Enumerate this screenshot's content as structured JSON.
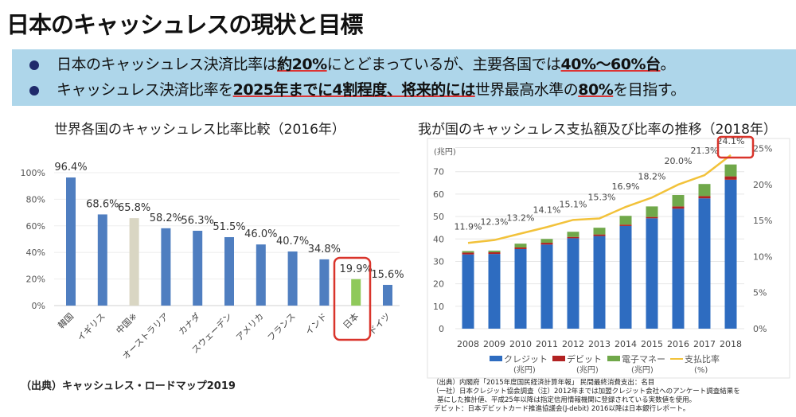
{
  "header": {
    "title": "日本のキャッシュレスの現状と目標"
  },
  "bullets": [
    {
      "parts": [
        {
          "t": "日本のキャッシュレス決済比率は",
          "b": false
        },
        {
          "t": "約20%",
          "b": true
        },
        {
          "t": "にとどまっているが、主要各国では",
          "b": false
        },
        {
          "t": "40%～60%台",
          "b": true
        },
        {
          "t": "。",
          "b": false
        }
      ]
    },
    {
      "parts": [
        {
          "t": "キャッシュレス決済比率を",
          "b": false
        },
        {
          "t": "2025年までに4割程度、将来的には",
          "b": true
        },
        {
          "t": "世界最高水準の",
          "b": false
        },
        {
          "t": "80%",
          "b": true
        },
        {
          "t": "を目指す。",
          "b": false
        }
      ]
    }
  ],
  "colors": {
    "band": "#aed6ea",
    "bar": "#4f7ec0",
    "bar_china": "#d9d6c3",
    "bar_japan": "#8fc95a",
    "highlight": "#d9342b",
    "credit": "#2e6cc0",
    "debit": "#b22222",
    "emoney": "#70a84a",
    "ratio": "#f2c23a"
  },
  "chart_data": [
    {
      "type": "bar",
      "title": "世界各国のキャッシュレス比率比較（2016年）",
      "categories": [
        "韓国",
        "イギリス",
        "中国※",
        "オーストラリア",
        "カナダ",
        "スウェーデン",
        "アメリカ",
        "フランス",
        "インド",
        "日本",
        "ドイツ"
      ],
      "values": [
        96.4,
        68.6,
        65.8,
        58.2,
        56.3,
        51.5,
        46.0,
        40.7,
        34.8,
        19.9,
        15.6
      ],
      "data_labels": [
        "96.4%",
        "68.6%",
        "65.8%",
        "58.2%",
        "56.3%",
        "51.5%",
        "46.0%",
        "40.7%",
        "34.8%",
        "19.9%",
        "15.6%"
      ],
      "ylim": [
        0,
        100
      ],
      "yticks": [
        "0%",
        "20%",
        "40%",
        "60%",
        "80%",
        "100%"
      ],
      "grid": true,
      "highlight": "日本",
      "source": "（出典）キャッシュレス・ロードマップ2019"
    },
    {
      "type": "bar+line",
      "title": "我が国のキャッシュレス支払額及び比率の推移（2018年）",
      "categories": [
        "2008",
        "2009",
        "2010",
        "2011",
        "2012",
        "2013",
        "2014",
        "2015",
        "2016",
        "2017",
        "2018"
      ],
      "ylabel": "(兆円)",
      "ylim": [
        0,
        80
      ],
      "yticks": [
        "0",
        "10",
        "20",
        "30",
        "40",
        "50",
        "60",
        "70"
      ],
      "y2lim": [
        0,
        25
      ],
      "y2ticks": [
        "0%",
        "5%",
        "10%",
        "15%",
        "20%",
        "25%"
      ],
      "grid": true,
      "series": [
        {
          "name": "クレジット",
          "unit": "(兆円)",
          "kind": "stacked-bar",
          "values": [
            33.1,
            33.3,
            35.5,
            37.5,
            40.3,
            41.3,
            45.8,
            49.2,
            53.5,
            58.1,
            66.4
          ]
        },
        {
          "name": "デビット",
          "unit": "(兆円)",
          "kind": "stacked-bar",
          "values": [
            0.8,
            0.8,
            0.7,
            0.8,
            0.6,
            0.7,
            0.6,
            0.6,
            1.0,
            1.0,
            1.5
          ]
        },
        {
          "name": "電子マネー",
          "unit": "(兆円)",
          "kind": "stacked-bar",
          "values": [
            0.7,
            0.7,
            1.7,
            1.7,
            2.3,
            3.0,
            3.9,
            4.7,
            5.1,
            5.4,
            5.3
          ]
        },
        {
          "name": "支払比率",
          "unit": "(%)",
          "kind": "line",
          "axis": "right",
          "values": [
            11.9,
            12.3,
            13.2,
            14.1,
            15.1,
            15.3,
            16.9,
            18.2,
            20.0,
            21.3,
            24.1
          ],
          "data_labels": [
            "11.9%",
            "12.3%",
            "13.2%",
            "14.1%",
            "15.1%",
            "15.3%",
            "16.9%",
            "18.2%",
            "20.0%",
            "21.3%",
            "24.1%"
          ]
        }
      ],
      "legend": "bottom",
      "highlight": "2018",
      "notes": [
        "（出典）内閣府「2015年度国民経済計算年報」 民間最終消費支出：名目",
        "（一社）日本クレジット協会調査（注）2012年までは加盟クレジット会社へのアンケート調査結果を",
        "基にした推計値、平成25年以降は指定信用情報機関に登録されている実数値を使用。",
        "デビット：日本デビットカード推進協議会(J-debit) 2016以降は日本銀行レポート。"
      ]
    }
  ]
}
